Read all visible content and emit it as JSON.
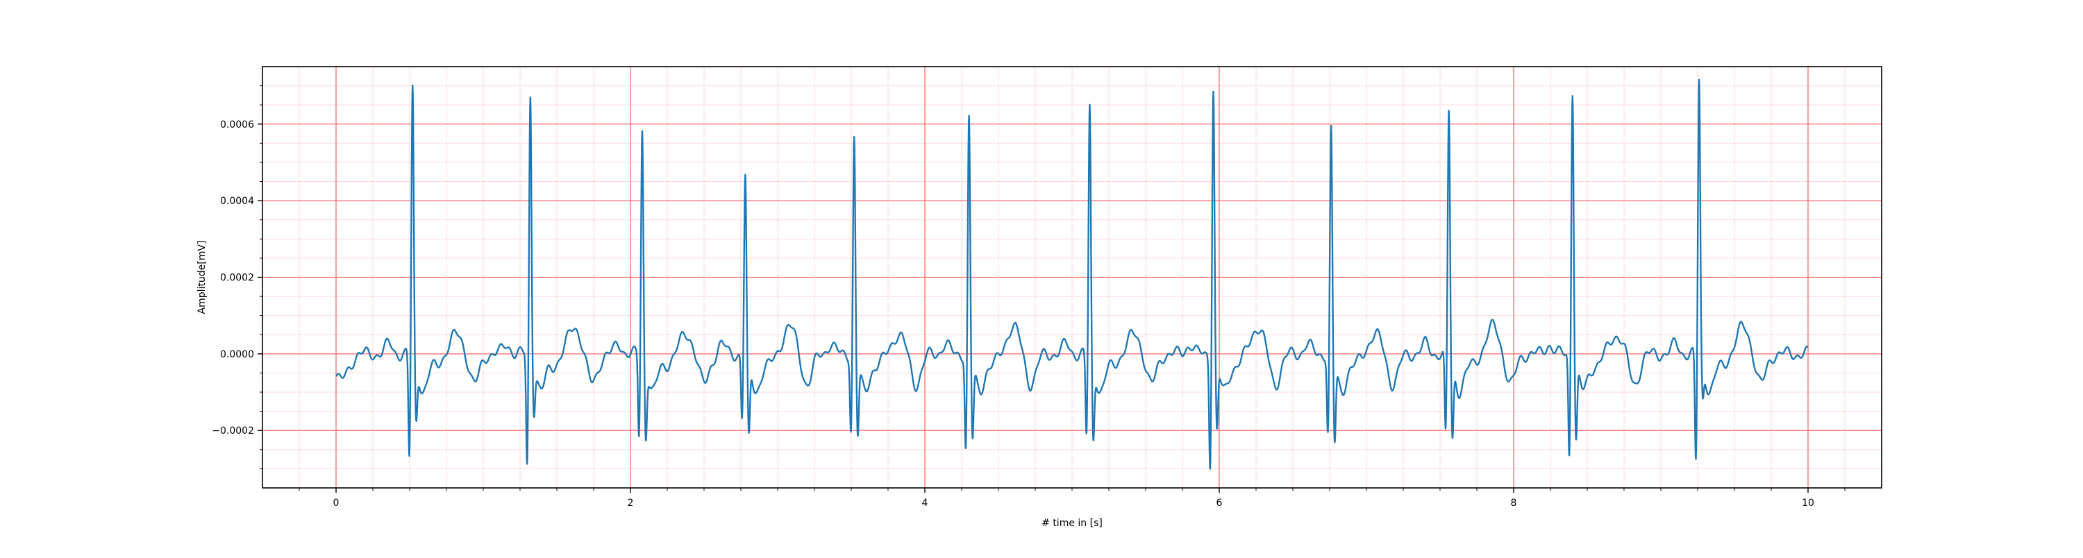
{
  "chart_data": {
    "type": "line",
    "title": "",
    "xlabel": "# time in [s]",
    "ylabel": "Amplitude[mV]",
    "xlim": [
      -0.5,
      10.5
    ],
    "ylim": [
      -0.00035,
      0.00075
    ],
    "x_ticks": [
      0,
      2,
      4,
      6,
      8,
      10
    ],
    "x_tick_labels": [
      "0",
      "2",
      "4",
      "6",
      "8",
      "10"
    ],
    "y_ticks": [
      -0.0002,
      0.0,
      0.0002,
      0.0004,
      0.0006
    ],
    "y_tick_labels": [
      "−0.0002",
      "0.0000",
      "0.0002",
      "0.0004",
      "0.0006"
    ],
    "grid": {
      "major": true,
      "minor": true,
      "major_color": "#ff6b6b",
      "minor_color": "#ffd9d9"
    },
    "line_color": "#1f77b4",
    "beats": [
      {
        "t": 0.52,
        "r": 0.0007,
        "q": -0.00028,
        "s": -0.00015
      },
      {
        "t": 1.32,
        "r": 0.00068,
        "q": -0.0003,
        "s": -0.00012
      },
      {
        "t": 2.08,
        "r": 0.00059,
        "q": -0.00022,
        "s": -0.00019
      },
      {
        "t": 2.78,
        "r": 0.00047,
        "q": -0.00017,
        "s": -0.0002
      },
      {
        "t": 3.52,
        "r": 0.00057,
        "q": -0.0002,
        "s": -0.00019
      },
      {
        "t": 4.3,
        "r": 0.00062,
        "q": -0.00025,
        "s": -0.0002
      },
      {
        "t": 5.12,
        "r": 0.00065,
        "q": -0.00022,
        "s": -0.0002
      },
      {
        "t": 5.96,
        "r": 0.0007,
        "q": -0.00029,
        "s": -0.00018
      },
      {
        "t": 6.76,
        "r": 0.00059,
        "q": -0.00021,
        "s": -0.00021
      },
      {
        "t": 7.56,
        "r": 0.00064,
        "q": -0.00022,
        "s": -0.0002
      },
      {
        "t": 8.4,
        "r": 0.0007,
        "q": -0.00027,
        "s": -0.0002
      },
      {
        "t": 9.26,
        "r": 0.00072,
        "q": -0.00029,
        "s": -9e-05
      }
    ]
  }
}
